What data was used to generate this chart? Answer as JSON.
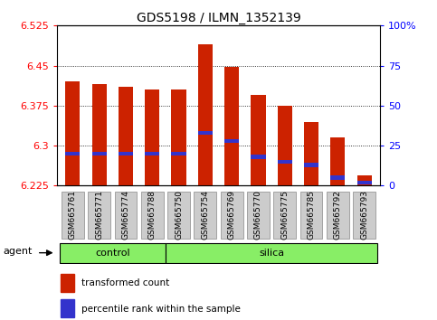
{
  "title": "GDS5198 / ILMN_1352139",
  "samples": [
    "GSM665761",
    "GSM665771",
    "GSM665774",
    "GSM665788",
    "GSM665750",
    "GSM665754",
    "GSM665769",
    "GSM665770",
    "GSM665775",
    "GSM665785",
    "GSM665792",
    "GSM665793"
  ],
  "transformed_counts": [
    6.42,
    6.415,
    6.41,
    6.405,
    6.405,
    6.49,
    6.448,
    6.395,
    6.375,
    6.345,
    6.315,
    6.245
  ],
  "percentile_ranks": [
    20,
    20,
    20,
    20,
    20,
    33,
    28,
    18,
    15,
    13,
    5,
    2
  ],
  "ymin": 6.225,
  "ymax": 6.525,
  "yticks": [
    6.225,
    6.3,
    6.375,
    6.45,
    6.525
  ],
  "ytick_labels": [
    "6.225",
    "6.3",
    "6.375",
    "6.45",
    "6.525"
  ],
  "right_yticks": [
    0,
    25,
    50,
    75,
    100
  ],
  "right_ytick_labels": [
    "0",
    "25",
    "50",
    "75",
    "100%"
  ],
  "n_control": 4,
  "n_silica": 8,
  "bar_color": "#cc2200",
  "blue_color": "#3333cc",
  "bar_width": 0.55,
  "control_label": "control",
  "silica_label": "silica",
  "agent_label": "agent",
  "legend_red_label": "transformed count",
  "legend_blue_label": "percentile rank within the sample",
  "group_fill_color": "#88ee66",
  "group_edge_color": "#000000",
  "tick_bg_color": "#cccccc",
  "tick_edge_color": "#888888",
  "title_fontsize": 10,
  "axis_fontsize": 8,
  "tick_fontsize": 6.5,
  "group_fontsize": 8,
  "legend_fontsize": 7.5
}
